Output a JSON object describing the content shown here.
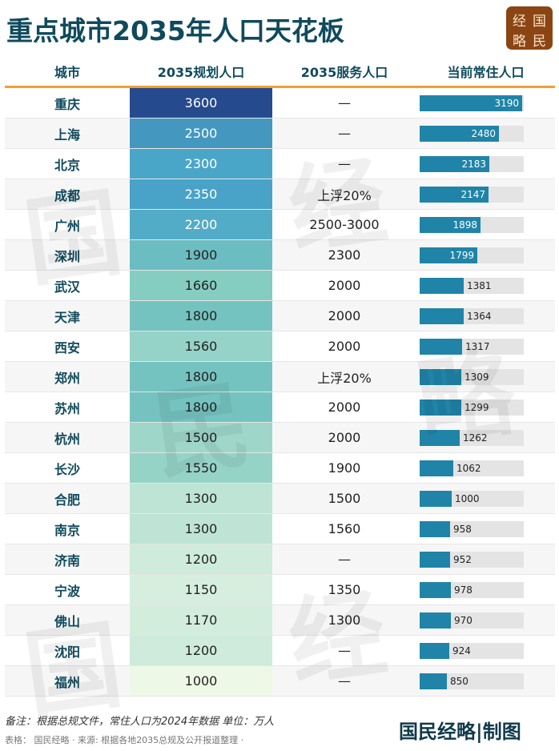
{
  "title": "重点城市2035年人口天花板",
  "logo": [
    "经",
    "国",
    "略",
    "民"
  ],
  "headers": [
    "城市",
    "2035规划人口",
    "2035服务人口",
    "当前常住人口"
  ],
  "watermark": "国民经略",
  "chart_data": {
    "type": "table",
    "columns": [
      "城市",
      "2035规划人口",
      "2035服务人口",
      "当前常住人口"
    ],
    "rows": [
      {
        "city": "重庆",
        "plan": "3600",
        "service": "—",
        "current": "3190"
      },
      {
        "city": "上海",
        "plan": "2500",
        "service": "—",
        "current": "2480"
      },
      {
        "city": "北京",
        "plan": "2300",
        "service": "—",
        "current": "2183"
      },
      {
        "city": "成都",
        "plan": "2350",
        "service": "上浮20%",
        "current": "2147"
      },
      {
        "city": "广州",
        "plan": "2200",
        "service": "2500-3000",
        "current": "1898"
      },
      {
        "city": "深圳",
        "plan": "1900",
        "service": "2300",
        "current": "1799"
      },
      {
        "city": "武汉",
        "plan": "1660",
        "service": "2000",
        "current": "1381"
      },
      {
        "city": "天津",
        "plan": "1800",
        "service": "2000",
        "current": "1364"
      },
      {
        "city": "西安",
        "plan": "1560",
        "service": "2000",
        "current": "1317"
      },
      {
        "city": "郑州",
        "plan": "1800",
        "service": "上浮20%",
        "current": "1309"
      },
      {
        "city": "苏州",
        "plan": "1800",
        "service": "2000",
        "current": "1299"
      },
      {
        "city": "杭州",
        "plan": "1500",
        "service": "2000",
        "current": "1262"
      },
      {
        "city": "长沙",
        "plan": "1550",
        "service": "1900",
        "current": "1062"
      },
      {
        "city": "合肥",
        "plan": "1300",
        "service": "1500",
        "current": "1000"
      },
      {
        "city": "南京",
        "plan": "1300",
        "service": "1560",
        "current": "958"
      },
      {
        "city": "济南",
        "plan": "1200",
        "service": "—",
        "current": "952"
      },
      {
        "city": "宁波",
        "plan": "1150",
        "service": "1350",
        "current": "978"
      },
      {
        "city": "佛山",
        "plan": "1170",
        "service": "1300",
        "current": "970"
      },
      {
        "city": "沈阳",
        "plan": "1200",
        "service": "—",
        "current": "924"
      },
      {
        "city": "福州",
        "plan": "1000",
        "service": "—",
        "current": "850"
      }
    ],
    "colors": {
      "plan_high": "#264a8e",
      "plan_mid": "#4aa6c9",
      "plan_low": "#eef8e6",
      "bar": "#1f84a8",
      "track": "#e4e4e4",
      "header_line": "#f0a030"
    }
  },
  "footer": {
    "note": "备注：根据总规文件，常住人口为2024年数据 单位：万人",
    "source": "表格： 国民经略 · 来源: 根据各地2035总规及公开报道整理 ·",
    "brand": "国民经略|制图"
  }
}
